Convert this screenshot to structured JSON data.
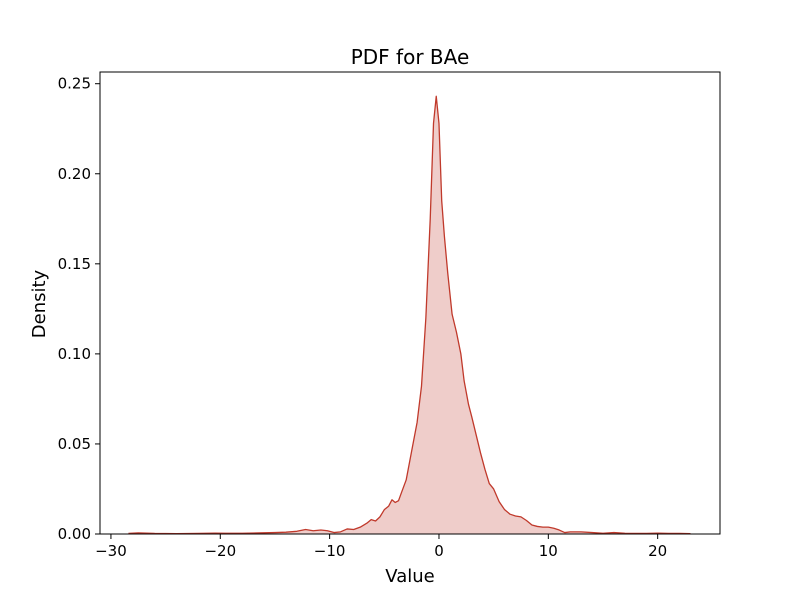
{
  "chart_data": {
    "type": "area",
    "title": "PDF for BAe",
    "xlabel": "Value",
    "ylabel": "Density",
    "xlim": [
      -31.0,
      25.7
    ],
    "ylim": [
      0,
      0.2565
    ],
    "xticks": [
      -30,
      -20,
      -10,
      0,
      10,
      20
    ],
    "xtick_labels": [
      "−30",
      "−20",
      "−10",
      "0",
      "10",
      "20"
    ],
    "yticks": [
      0.0,
      0.05,
      0.1,
      0.15,
      0.2,
      0.25
    ],
    "ytick_labels": [
      "0.00",
      "0.05",
      "0.10",
      "0.15",
      "0.20",
      "0.25"
    ],
    "grid": false,
    "legend": "none",
    "series": [
      {
        "color": "#c0392b",
        "fill_color": "#c0392b",
        "fill_opacity": 0.25,
        "x": [
          -28.4,
          -27.5,
          -26,
          -24,
          -22,
          -20.5,
          -19.5,
          -18,
          -16.5,
          -15,
          -14,
          -13,
          -12.2,
          -11.5,
          -10.8,
          -10.2,
          -9.6,
          -9,
          -8.4,
          -7.8,
          -7.2,
          -6.6,
          -6.2,
          -5.8,
          -5.4,
          -5,
          -4.6,
          -4.3,
          -4,
          -3.7,
          -3.4,
          -3,
          -2.5,
          -2,
          -1.6,
          -1.2,
          -0.8,
          -0.5,
          -0.25,
          0,
          0.25,
          0.5,
          0.8,
          1.2,
          1.6,
          2,
          2.3,
          2.7,
          3,
          3.4,
          3.8,
          4.2,
          4.6,
          5,
          5.5,
          6,
          6.5,
          7,
          7.5,
          8,
          8.5,
          9,
          9.5,
          10,
          10.5,
          11,
          11.5,
          12,
          13,
          14,
          15,
          16,
          17,
          18,
          19,
          20,
          21,
          22,
          23
        ],
        "y": [
          0.0003,
          0.0006,
          0.0003,
          0.0002,
          0.0003,
          0.0005,
          0.0004,
          0.0004,
          0.0006,
          0.0008,
          0.001,
          0.0015,
          0.0025,
          0.0018,
          0.0022,
          0.0018,
          0.0008,
          0.0012,
          0.0028,
          0.0025,
          0.0038,
          0.006,
          0.008,
          0.0072,
          0.0095,
          0.0135,
          0.0155,
          0.019,
          0.0175,
          0.0185,
          0.0235,
          0.03,
          0.046,
          0.062,
          0.082,
          0.12,
          0.175,
          0.228,
          0.243,
          0.228,
          0.185,
          0.165,
          0.145,
          0.122,
          0.112,
          0.1,
          0.085,
          0.072,
          0.065,
          0.055,
          0.045,
          0.036,
          0.028,
          0.025,
          0.018,
          0.0135,
          0.011,
          0.01,
          0.0095,
          0.0075,
          0.005,
          0.0042,
          0.0038,
          0.0038,
          0.0032,
          0.0022,
          0.0008,
          0.0012,
          0.0012,
          0.0008,
          0.0004,
          0.0008,
          0.0004,
          0.0003,
          0.0003,
          0.0005,
          0.0003,
          0.0003,
          0.0002
        ]
      }
    ]
  }
}
